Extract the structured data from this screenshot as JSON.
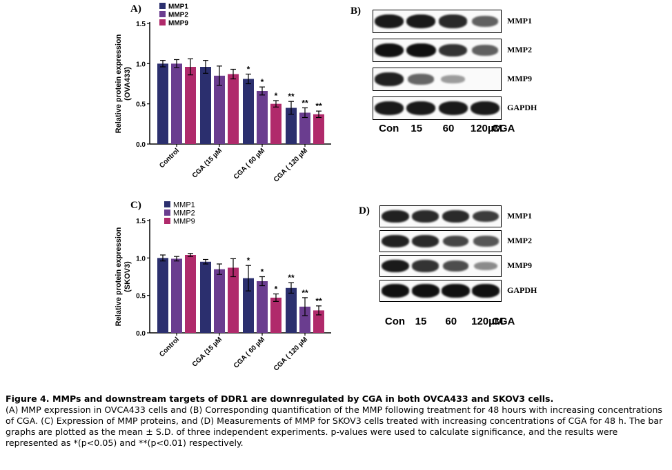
{
  "chart_data": [
    {
      "type": "bar",
      "panel": "A)",
      "title": "",
      "ylabel": "Relative protein expression (OVA433)",
      "ylim": [
        0,
        1.5
      ],
      "yticks": [
        "0.0",
        "0.5",
        "1.0",
        "1.5"
      ],
      "categories": [
        "Control",
        "CGA (15 µM",
        "CGA ( 60 µM",
        "CGA ( 120 µM"
      ],
      "series": [
        {
          "name": "MMP1",
          "color": "#2b2f6e",
          "values": [
            1.0,
            0.96,
            0.81,
            0.45
          ],
          "errors": [
            0.04,
            0.08,
            0.06,
            0.08
          ],
          "sig": [
            "",
            "",
            "*",
            "**"
          ]
        },
        {
          "name": "MMP2",
          "color": "#6a3d8f",
          "values": [
            1.0,
            0.85,
            0.66,
            0.39
          ],
          "errors": [
            0.05,
            0.12,
            0.05,
            0.06
          ],
          "sig": [
            "",
            "",
            "*",
            "**"
          ]
        },
        {
          "name": "MMP9",
          "color": "#b02a6b",
          "values": [
            0.96,
            0.87,
            0.5,
            0.37
          ],
          "errors": [
            0.1,
            0.06,
            0.04,
            0.04
          ],
          "sig": [
            "",
            "",
            "*",
            "**"
          ]
        }
      ],
      "legend_position": "top"
    },
    {
      "type": "bar",
      "panel": "C)",
      "title": "",
      "ylabel": "Relative protein expression (SKOV3)",
      "ylim": [
        0,
        1.5
      ],
      "yticks": [
        "0.0",
        "0.5",
        "1.0",
        "1.5"
      ],
      "categories": [
        "Control",
        "CGA (15 µM",
        "CGA ( 60 µM",
        "CGA ( 120 µM"
      ],
      "series": [
        {
          "name": "MMP1",
          "color": "#2b2f6e",
          "values": [
            1.0,
            0.95,
            0.73,
            0.6
          ],
          "errors": [
            0.04,
            0.03,
            0.17,
            0.07
          ],
          "sig": [
            "",
            "",
            "*",
            "**"
          ]
        },
        {
          "name": "MMP2",
          "color": "#6a3d8f",
          "values": [
            0.99,
            0.85,
            0.69,
            0.35
          ],
          "errors": [
            0.03,
            0.07,
            0.06,
            0.12
          ],
          "sig": [
            "",
            "",
            "*",
            "**"
          ]
        },
        {
          "name": "MMP9",
          "color": "#b02a6b",
          "values": [
            1.04,
            0.87,
            0.47,
            0.3
          ],
          "errors": [
            0.02,
            0.12,
            0.05,
            0.06
          ],
          "sig": [
            "",
            "",
            "*",
            "**"
          ]
        }
      ],
      "legend_position": "top"
    }
  ],
  "blots": {
    "B": {
      "letter": "B)",
      "rows": [
        {
          "label": "MMP1",
          "intensities": [
            0.95,
            0.95,
            0.85,
            0.55
          ]
        },
        {
          "label": "MMP2",
          "intensities": [
            1.0,
            1.0,
            0.8,
            0.55
          ]
        },
        {
          "label": "MMP9",
          "intensities": [
            0.9,
            0.5,
            0.2,
            0.0
          ]
        },
        {
          "label": "GAPDH",
          "intensities": [
            0.95,
            0.95,
            0.95,
            0.95
          ]
        }
      ],
      "lanes": [
        "Con",
        "15",
        "60",
        "120µM"
      ],
      "treatment": "CGA"
    },
    "D": {
      "letter": "D)",
      "rows": [
        {
          "label": "MMP1",
          "intensities": [
            0.9,
            0.85,
            0.85,
            0.75
          ]
        },
        {
          "label": "MMP2",
          "intensities": [
            0.9,
            0.85,
            0.7,
            0.6
          ]
        },
        {
          "label": "MMP9",
          "intensities": [
            0.95,
            0.8,
            0.65,
            0.3
          ]
        },
        {
          "label": "GAPDH",
          "intensities": [
            1.0,
            1.0,
            1.0,
            1.0
          ]
        }
      ],
      "lanes": [
        "Con",
        "15",
        "60",
        "120µM"
      ],
      "treatment": "CGA"
    }
  },
  "caption": {
    "title": "Figure 4. MMPs and downstream targets of DDR1 are downregulated by CGA in both OVCA433 and SKOV3 cells.",
    "body": "(A) MMP expression in OVCA433 cells and (B) Corresponding quantification of the MMP following treatment for 48 hours with increasing concentrations of CGA. (C) Expression of MMP proteins, and (D) Measurements of MMP for SKOV3 cells treated with increasing concentrations of CGA for 48 h. The bar graphs are plotted as the mean ± S.D. of three independent experiments. p-values were used to calculate significance, and the results were represented as *(p<0.05) and **(p<0.01) respectively."
  }
}
